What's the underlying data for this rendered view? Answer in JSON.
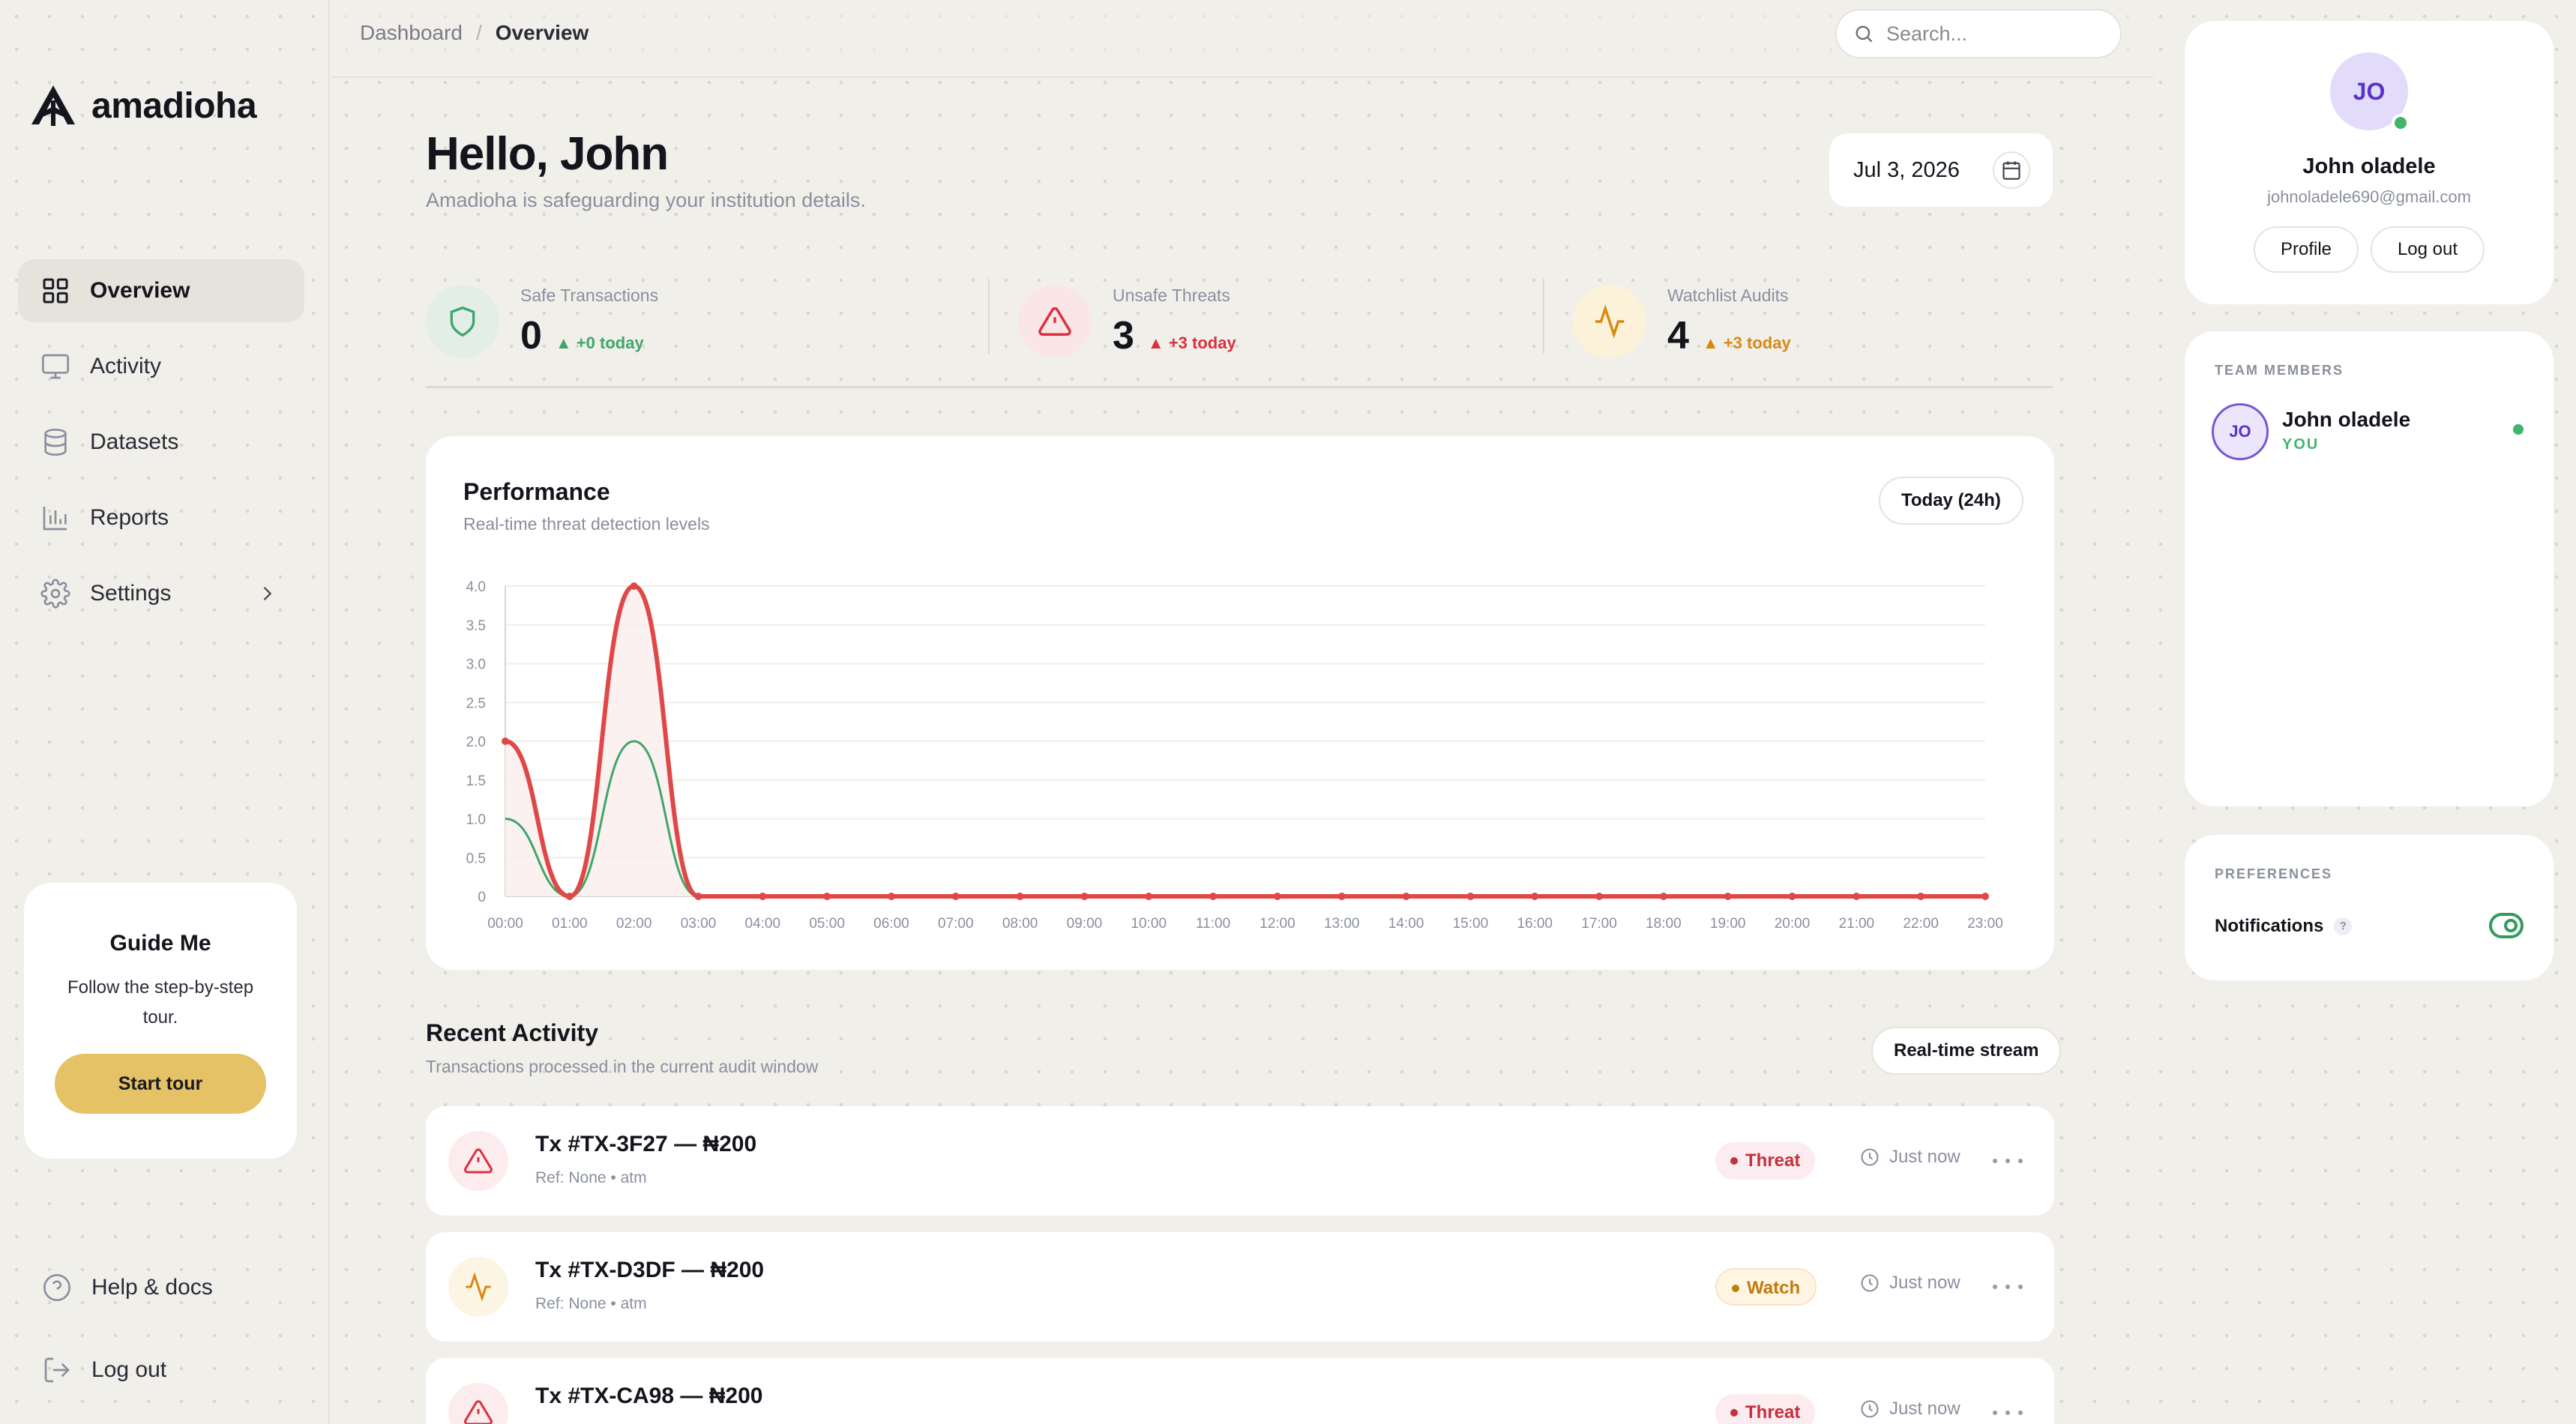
{
  "brand": {
    "name": "amadioha"
  },
  "nav": {
    "items": [
      {
        "label": "Overview",
        "icon": "grid-icon",
        "active": true
      },
      {
        "label": "Activity",
        "icon": "monitor-icon"
      },
      {
        "label": "Datasets",
        "icon": "database-icon"
      },
      {
        "label": "Reports",
        "icon": "bar-chart-icon"
      },
      {
        "label": "Settings",
        "icon": "gear-icon",
        "has_submenu": true
      }
    ],
    "bottom": [
      {
        "label": "Help & docs",
        "icon": "help-circle-icon"
      },
      {
        "label": "Log out",
        "icon": "logout-icon"
      }
    ]
  },
  "guide": {
    "title": "Guide Me",
    "text": "Follow the step-by-step tour.",
    "button": "Start tour"
  },
  "topbar": {
    "breadcrumb": [
      "Dashboard",
      "Overview"
    ],
    "breadcrumb_sep": "/",
    "search_placeholder": "Search..."
  },
  "header": {
    "greeting": "Hello, John",
    "subtitle": "Amadioha is safeguarding your institution details.",
    "date": "Jul 3, 2026"
  },
  "stats": [
    {
      "label": "Safe Transactions",
      "value": "0",
      "delta": "+0 today",
      "color": "#3fa669",
      "icon": "shield-icon"
    },
    {
      "label": "Unsafe Threats",
      "value": "3",
      "delta": "+3 today",
      "color": "#d9303f",
      "icon": "alert-triangle-icon"
    },
    {
      "label": "Watchlist Audits",
      "value": "4",
      "delta": "+3 today",
      "color": "#d68a14",
      "icon": "activity-icon"
    }
  ],
  "performance": {
    "title": "Performance",
    "subtitle": "Real-time threat detection levels",
    "range_button": "Today (24h)"
  },
  "chart_data": {
    "type": "line",
    "x": [
      "00:00",
      "01:00",
      "02:00",
      "03:00",
      "04:00",
      "05:00",
      "06:00",
      "07:00",
      "08:00",
      "09:00",
      "10:00",
      "11:00",
      "12:00",
      "13:00",
      "14:00",
      "15:00",
      "16:00",
      "17:00",
      "18:00",
      "19:00",
      "20:00",
      "21:00",
      "22:00",
      "23:00"
    ],
    "series": [
      {
        "values": [
          2.0,
          0,
          4.0,
          0,
          0,
          0,
          0,
          0,
          0,
          0,
          0,
          0,
          0,
          0,
          0,
          0,
          0,
          0,
          0,
          0,
          0,
          0,
          0,
          0
        ],
        "color": "#e04848",
        "markers": true
      },
      {
        "values": [
          1.0,
          0,
          2.0,
          0,
          0,
          0,
          0,
          0,
          0,
          0,
          0,
          0,
          0,
          0,
          0,
          0,
          0,
          0,
          0,
          0,
          0,
          0,
          0,
          0
        ],
        "color": "#3fa669",
        "markers": false
      }
    ],
    "yticks": [
      "0",
      "0.5",
      "1.0",
      "1.5",
      "2.0",
      "2.5",
      "3.0",
      "3.5",
      "4.0"
    ],
    "ylim": [
      0,
      4
    ],
    "grid": true,
    "smooth": true
  },
  "recent": {
    "title": "Recent Activity",
    "subtitle": "Transactions processed in the current audit window",
    "stream_button": "Real-time stream",
    "rows": [
      {
        "title": "Tx #TX-3F27 — ₦200",
        "ref": "Ref: None • atm",
        "status": "Threat",
        "time": "Just now",
        "icon": "alert-triangle-icon"
      },
      {
        "title": "Tx #TX-D3DF — ₦200",
        "ref": "Ref: None • atm",
        "status": "Watch",
        "time": "Just now",
        "icon": "activity-icon"
      },
      {
        "title": "Tx #TX-CA98 — ₦200",
        "ref": "",
        "status": "Threat",
        "time": "Just now",
        "icon": "alert-triangle-icon"
      }
    ]
  },
  "profile": {
    "initials": "JO",
    "name": "John oladele",
    "email": "johnoladele690@gmail.com",
    "profile_button": "Profile",
    "logout_button": "Log out"
  },
  "team": {
    "label": "TEAM MEMBERS",
    "members": [
      {
        "initials": "JO",
        "name": "John oladele",
        "tag": "YOU"
      }
    ]
  },
  "preferences": {
    "label": "PREFERENCES",
    "notifications_label": "Notifications",
    "help": "?",
    "notifications_on": true
  }
}
